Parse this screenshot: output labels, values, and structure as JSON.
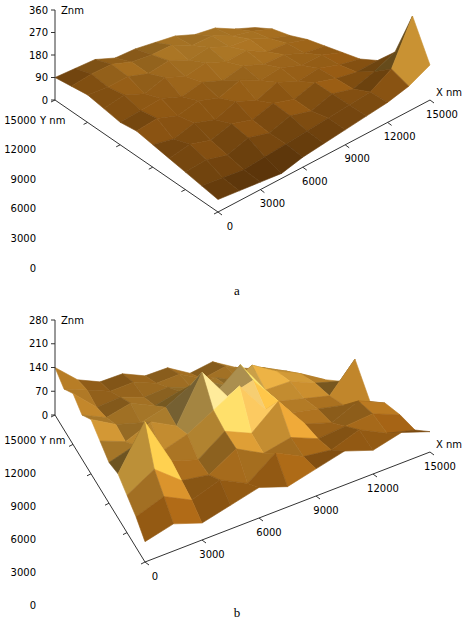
{
  "chart_data": [
    {
      "type": "surface",
      "title": "a",
      "x_label": "X nm",
      "y_label": "Y nm",
      "z_label": "Znm",
      "xlim": [
        0,
        15000
      ],
      "ylim": [
        0,
        15000
      ],
      "zlim": [
        0,
        360
      ],
      "xticks": [
        0,
        3000,
        6000,
        9000,
        12000,
        15000
      ],
      "yticks": [
        0,
        3000,
        6000,
        9000,
        12000,
        15000
      ],
      "zticks": [
        0,
        90,
        180,
        270,
        360
      ],
      "x": [
        0,
        1500,
        3000,
        4500,
        6000,
        7500,
        9000,
        10500,
        12000,
        13500,
        15000
      ],
      "y": [
        0,
        1500,
        3000,
        4500,
        6000,
        7500,
        9000,
        10500,
        12000,
        13500,
        15000
      ],
      "z": [
        [
          50,
          40,
          30,
          20,
          40,
          50,
          60,
          70,
          80,
          100,
          140
        ],
        [
          60,
          50,
          40,
          50,
          60,
          70,
          80,
          90,
          100,
          150,
          320
        ],
        [
          70,
          80,
          60,
          90,
          70,
          100,
          80,
          110,
          90,
          120,
          160
        ],
        [
          80,
          100,
          80,
          110,
          90,
          120,
          100,
          130,
          110,
          100,
          110
        ],
        [
          90,
          80,
          110,
          90,
          130,
          100,
          140,
          110,
          130,
          110,
          100
        ],
        [
          100,
          120,
          100,
          130,
          110,
          150,
          120,
          140,
          120,
          130,
          110
        ],
        [
          90,
          110,
          130,
          110,
          140,
          120,
          150,
          130,
          140,
          120,
          120
        ],
        [
          100,
          130,
          110,
          150,
          130,
          160,
          140,
          160,
          130,
          140,
          130
        ],
        [
          110,
          120,
          140,
          130,
          160,
          140,
          170,
          150,
          160,
          140,
          130
        ],
        [
          100,
          130,
          150,
          140,
          150,
          170,
          150,
          170,
          150,
          150,
          140
        ],
        [
          90,
          110,
          130,
          120,
          140,
          150,
          160,
          150,
          160,
          140,
          130
        ]
      ]
    },
    {
      "type": "surface",
      "title": "b",
      "x_label": "X nm",
      "y_label": "Y nm",
      "z_label": "Znm",
      "xlim": [
        0,
        15000
      ],
      "ylim": [
        0,
        15000
      ],
      "zlim": [
        0,
        280
      ],
      "xticks": [
        0,
        3000,
        6000,
        9000,
        12000,
        15000
      ],
      "yticks": [
        0,
        3000,
        6000,
        9000,
        12000,
        15000
      ],
      "zticks": [
        0,
        70,
        140,
        210,
        280
      ],
      "x": [
        0,
        1500,
        3000,
        4500,
        6000,
        7500,
        9000,
        10500,
        12000,
        13500,
        15000
      ],
      "y": [
        0,
        1500,
        3000,
        4500,
        6000,
        7500,
        9000,
        10500,
        12000,
        13500,
        15000
      ],
      "z": [
        [
          60,
          80,
          50,
          70,
          90,
          60,
          80,
          100,
          70,
          90,
          60
        ],
        [
          90,
          120,
          80,
          110,
          70,
          130,
          90,
          80,
          110,
          70,
          50
        ],
        [
          110,
          160,
          100,
          90,
          140,
          100,
          120,
          90,
          100,
          110,
          80
        ],
        [
          130,
          260,
          120,
          100,
          160,
          130,
          200,
          110,
          90,
          130,
          100
        ],
        [
          120,
          150,
          110,
          140,
          190,
          240,
          150,
          120,
          110,
          100,
          90
        ],
        [
          140,
          120,
          160,
          130,
          270,
          180,
          210,
          130,
          120,
          110,
          200
        ],
        [
          160,
          130,
          120,
          150,
          200,
          160,
          230,
          140,
          150,
          130,
          120
        ],
        [
          130,
          110,
          140,
          120,
          150,
          170,
          140,
          190,
          160,
          140,
          110
        ],
        [
          150,
          100,
          120,
          110,
          130,
          120,
          140,
          120,
          150,
          130,
          100
        ],
        [
          120,
          110,
          100,
          120,
          110,
          130,
          110,
          140,
          120,
          110,
          90
        ],
        [
          140,
          100,
          90,
          110,
          100,
          120,
          100,
          130,
          110,
          100,
          80
        ]
      ]
    }
  ]
}
